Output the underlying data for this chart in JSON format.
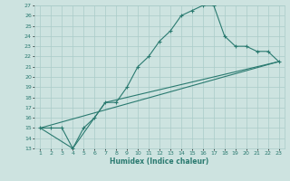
{
  "xlabel": "Humidex (Indice chaleur)",
  "xlim": [
    0.5,
    23.5
  ],
  "ylim": [
    13,
    27
  ],
  "xticks": [
    1,
    2,
    3,
    4,
    5,
    6,
    7,
    8,
    9,
    10,
    11,
    12,
    13,
    14,
    15,
    16,
    17,
    18,
    19,
    20,
    21,
    22,
    23
  ],
  "yticks": [
    13,
    14,
    15,
    16,
    17,
    18,
    19,
    20,
    21,
    22,
    23,
    24,
    25,
    26,
    27
  ],
  "bg_color": "#cde3e0",
  "grid_color": "#aaccc8",
  "line_color": "#2a7a70",
  "line1_x": [
    1,
    2,
    3,
    4,
    5,
    6,
    7,
    8,
    9,
    10,
    11,
    12,
    13,
    14,
    15,
    16,
    17,
    18,
    19,
    20,
    21,
    22,
    23
  ],
  "line1_y": [
    15.0,
    15.0,
    15.0,
    13.0,
    15.0,
    16.0,
    17.5,
    17.5,
    19.0,
    21.0,
    22.0,
    23.5,
    24.5,
    26.0,
    26.5,
    27.0,
    27.0,
    24.0,
    23.0,
    23.0,
    22.5,
    22.5,
    21.5
  ],
  "line2_x": [
    1,
    4,
    7,
    23
  ],
  "line2_y": [
    15.0,
    13.0,
    17.5,
    21.5
  ],
  "line3_x": [
    1,
    23
  ],
  "line3_y": [
    15.0,
    21.5
  ]
}
